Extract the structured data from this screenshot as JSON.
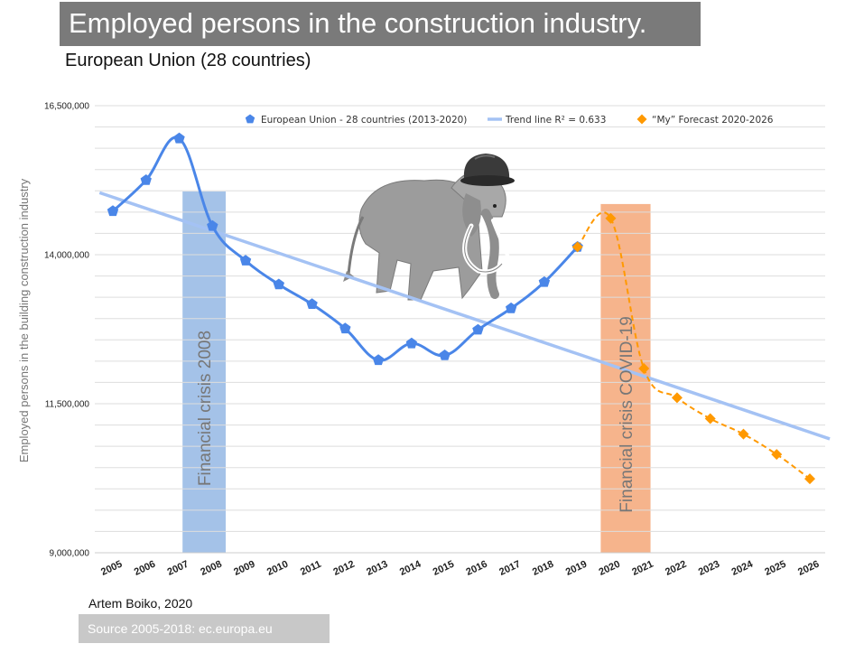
{
  "page": {
    "title": "Employed persons in the construction industry.",
    "subtitle": "European Union (28 countries)",
    "author": "Artem Boiko, 2020",
    "source": "Source 2005-2018:  ec.europa.eu"
  },
  "chart_data": {
    "type": "line",
    "ylabel": "Employed persons in the building construction industry",
    "ylim": [
      9000000,
      16500000
    ],
    "y_ticks": [
      9000000,
      11500000,
      14000000,
      16500000
    ],
    "y_tick_labels": [
      "9,000,000",
      "11,500,000",
      "14,000,000",
      "16,500,000"
    ],
    "x_labels": [
      "2005",
      "2006",
      "2007",
      "2008",
      "2009",
      "2010",
      "2011",
      "2012",
      "2013",
      "2014",
      "2015",
      "2016",
      "2017",
      "2018",
      "2019",
      "2020",
      "2021",
      "2022",
      "2023",
      "2024",
      "2025",
      "2026"
    ],
    "series": [
      {
        "name": "European Union - 28 countries (2013-2020)",
        "color": "#4a86e8",
        "marker": "pentagon",
        "style": "solid",
        "x": [
          2005,
          2006,
          2007,
          2008,
          2009,
          2010,
          2011,
          2012,
          2013,
          2014,
          2015,
          2016,
          2017,
          2018,
          2019
        ],
        "values": [
          14730000,
          15250000,
          15950000,
          14480000,
          13900000,
          13500000,
          13170000,
          12760000,
          12230000,
          12510000,
          12310000,
          12740000,
          13100000,
          13540000,
          14130000
        ]
      },
      {
        "name": "Trend line  R² = 0.633",
        "color": "#a4c2f4",
        "style": "trend",
        "x": [
          2004.6,
          2026.6
        ],
        "values": [
          15040000,
          10910000
        ]
      },
      {
        "name": "“My” Forecast 2020-2026",
        "color": "#ff9900",
        "marker": "diamond",
        "style": "dashed",
        "x": [
          2019,
          2020,
          2021,
          2022,
          2023,
          2024,
          2025,
          2026
        ],
        "values": [
          14130000,
          14610000,
          12090000,
          11600000,
          11250000,
          10990000,
          10650000,
          10240000
        ]
      }
    ],
    "crisis_bands": [
      {
        "label": "Financial crisis 2008",
        "from": 2007.1,
        "to": 2008.4,
        "ymax": 15060000,
        "color": "#a4c2e8"
      },
      {
        "label": "Financial crisis COVID-19",
        "from": 2019.7,
        "to": 2021.2,
        "ymax": 14850000,
        "color": "#f6b48c"
      }
    ]
  }
}
